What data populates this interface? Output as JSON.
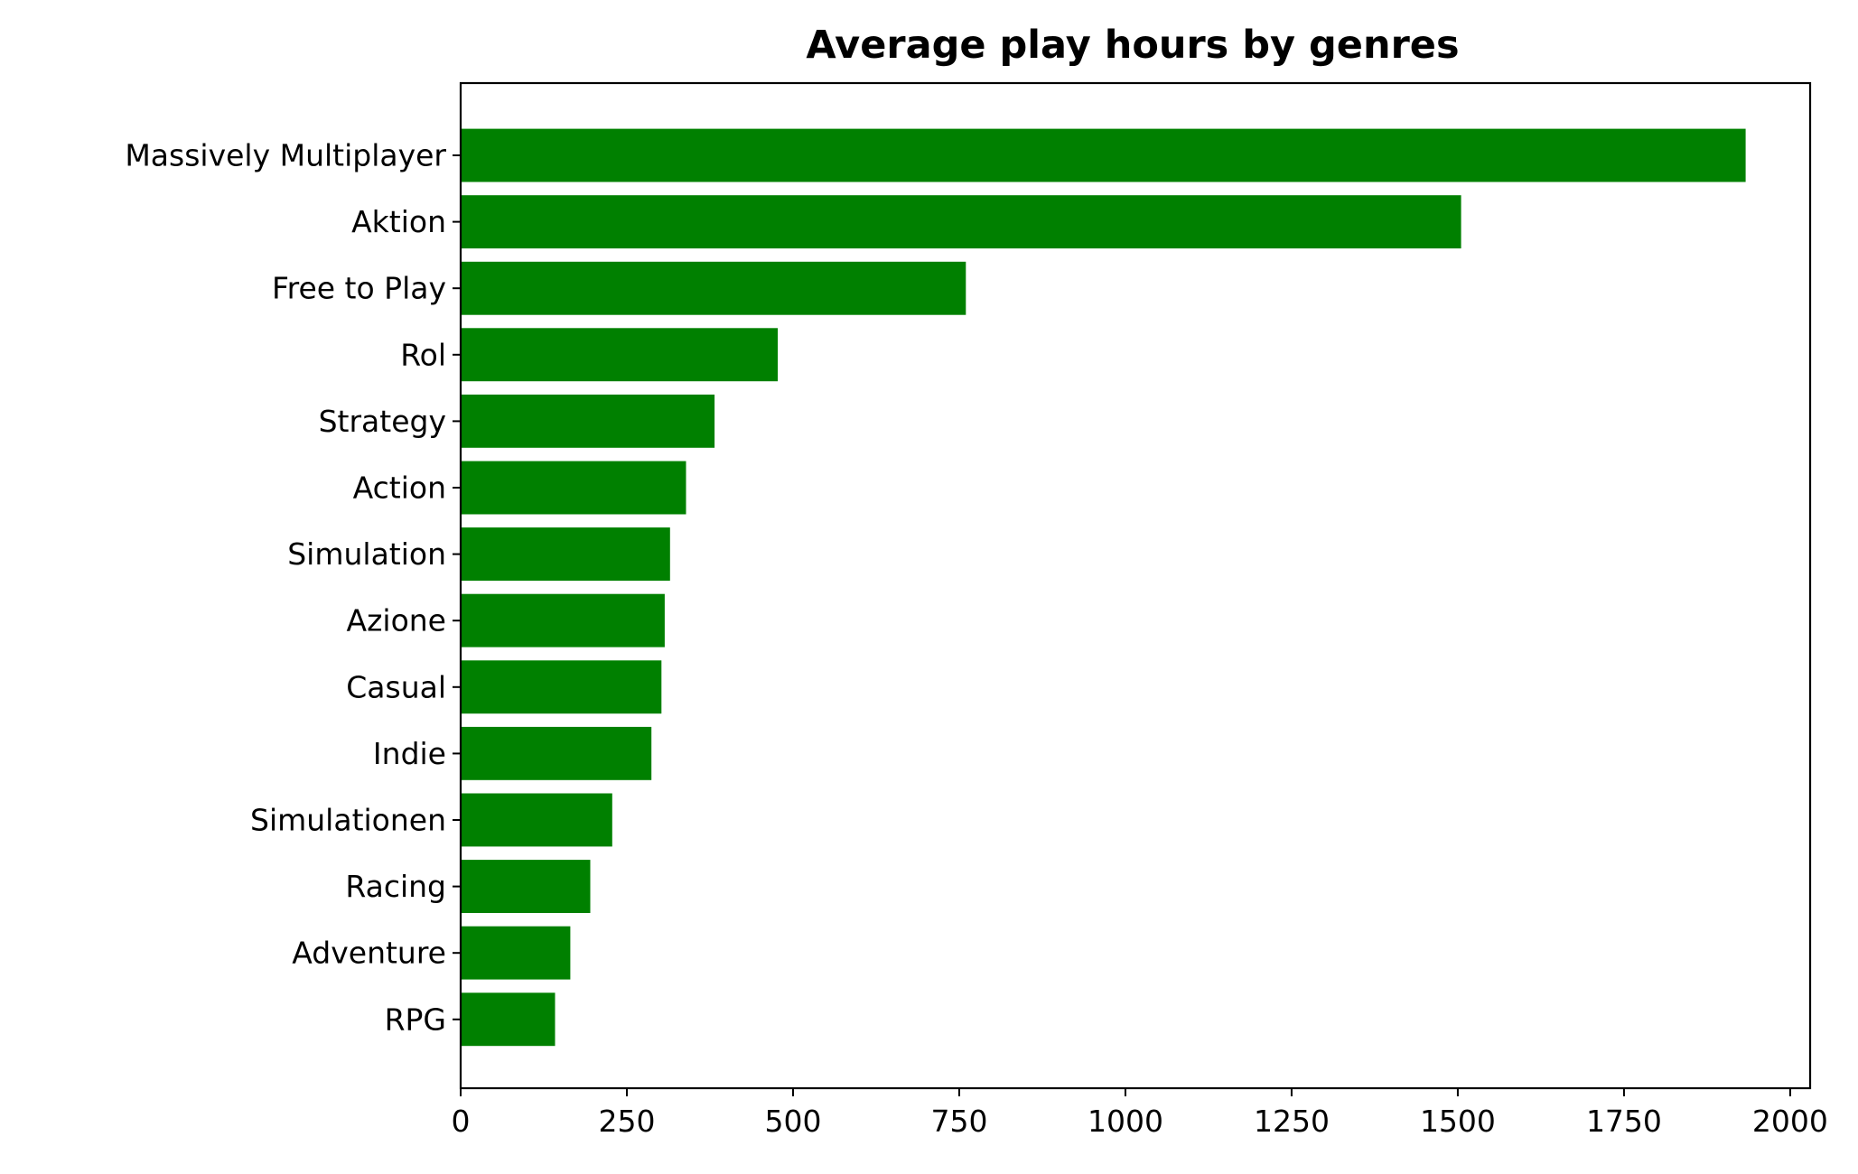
{
  "chart_data": {
    "type": "bar",
    "orientation": "horizontal",
    "title": "Average play hours by genres",
    "xlabel": "",
    "ylabel": "",
    "categories": [
      "Massively Multiplayer",
      "Aktion",
      "Free to Play",
      "Rol",
      "Strategy",
      "Action",
      "Simulation",
      "Azione",
      "Casual",
      "Indie",
      "Simulationen",
      "Racing",
      "Adventure",
      "RPG"
    ],
    "values": [
      1933,
      1505,
      760,
      477,
      382,
      339,
      315,
      307,
      302,
      287,
      228,
      195,
      165,
      142
    ],
    "xlim": [
      0,
      2030
    ],
    "xticks": [
      0,
      250,
      500,
      750,
      1000,
      1250,
      1500,
      1750,
      2000
    ],
    "xtick_labels": [
      "0",
      "250",
      "500",
      "750",
      "1000",
      "1250",
      "1500",
      "1750",
      "2000"
    ],
    "bar_color": "#008000",
    "grid": false,
    "legend": "none"
  }
}
